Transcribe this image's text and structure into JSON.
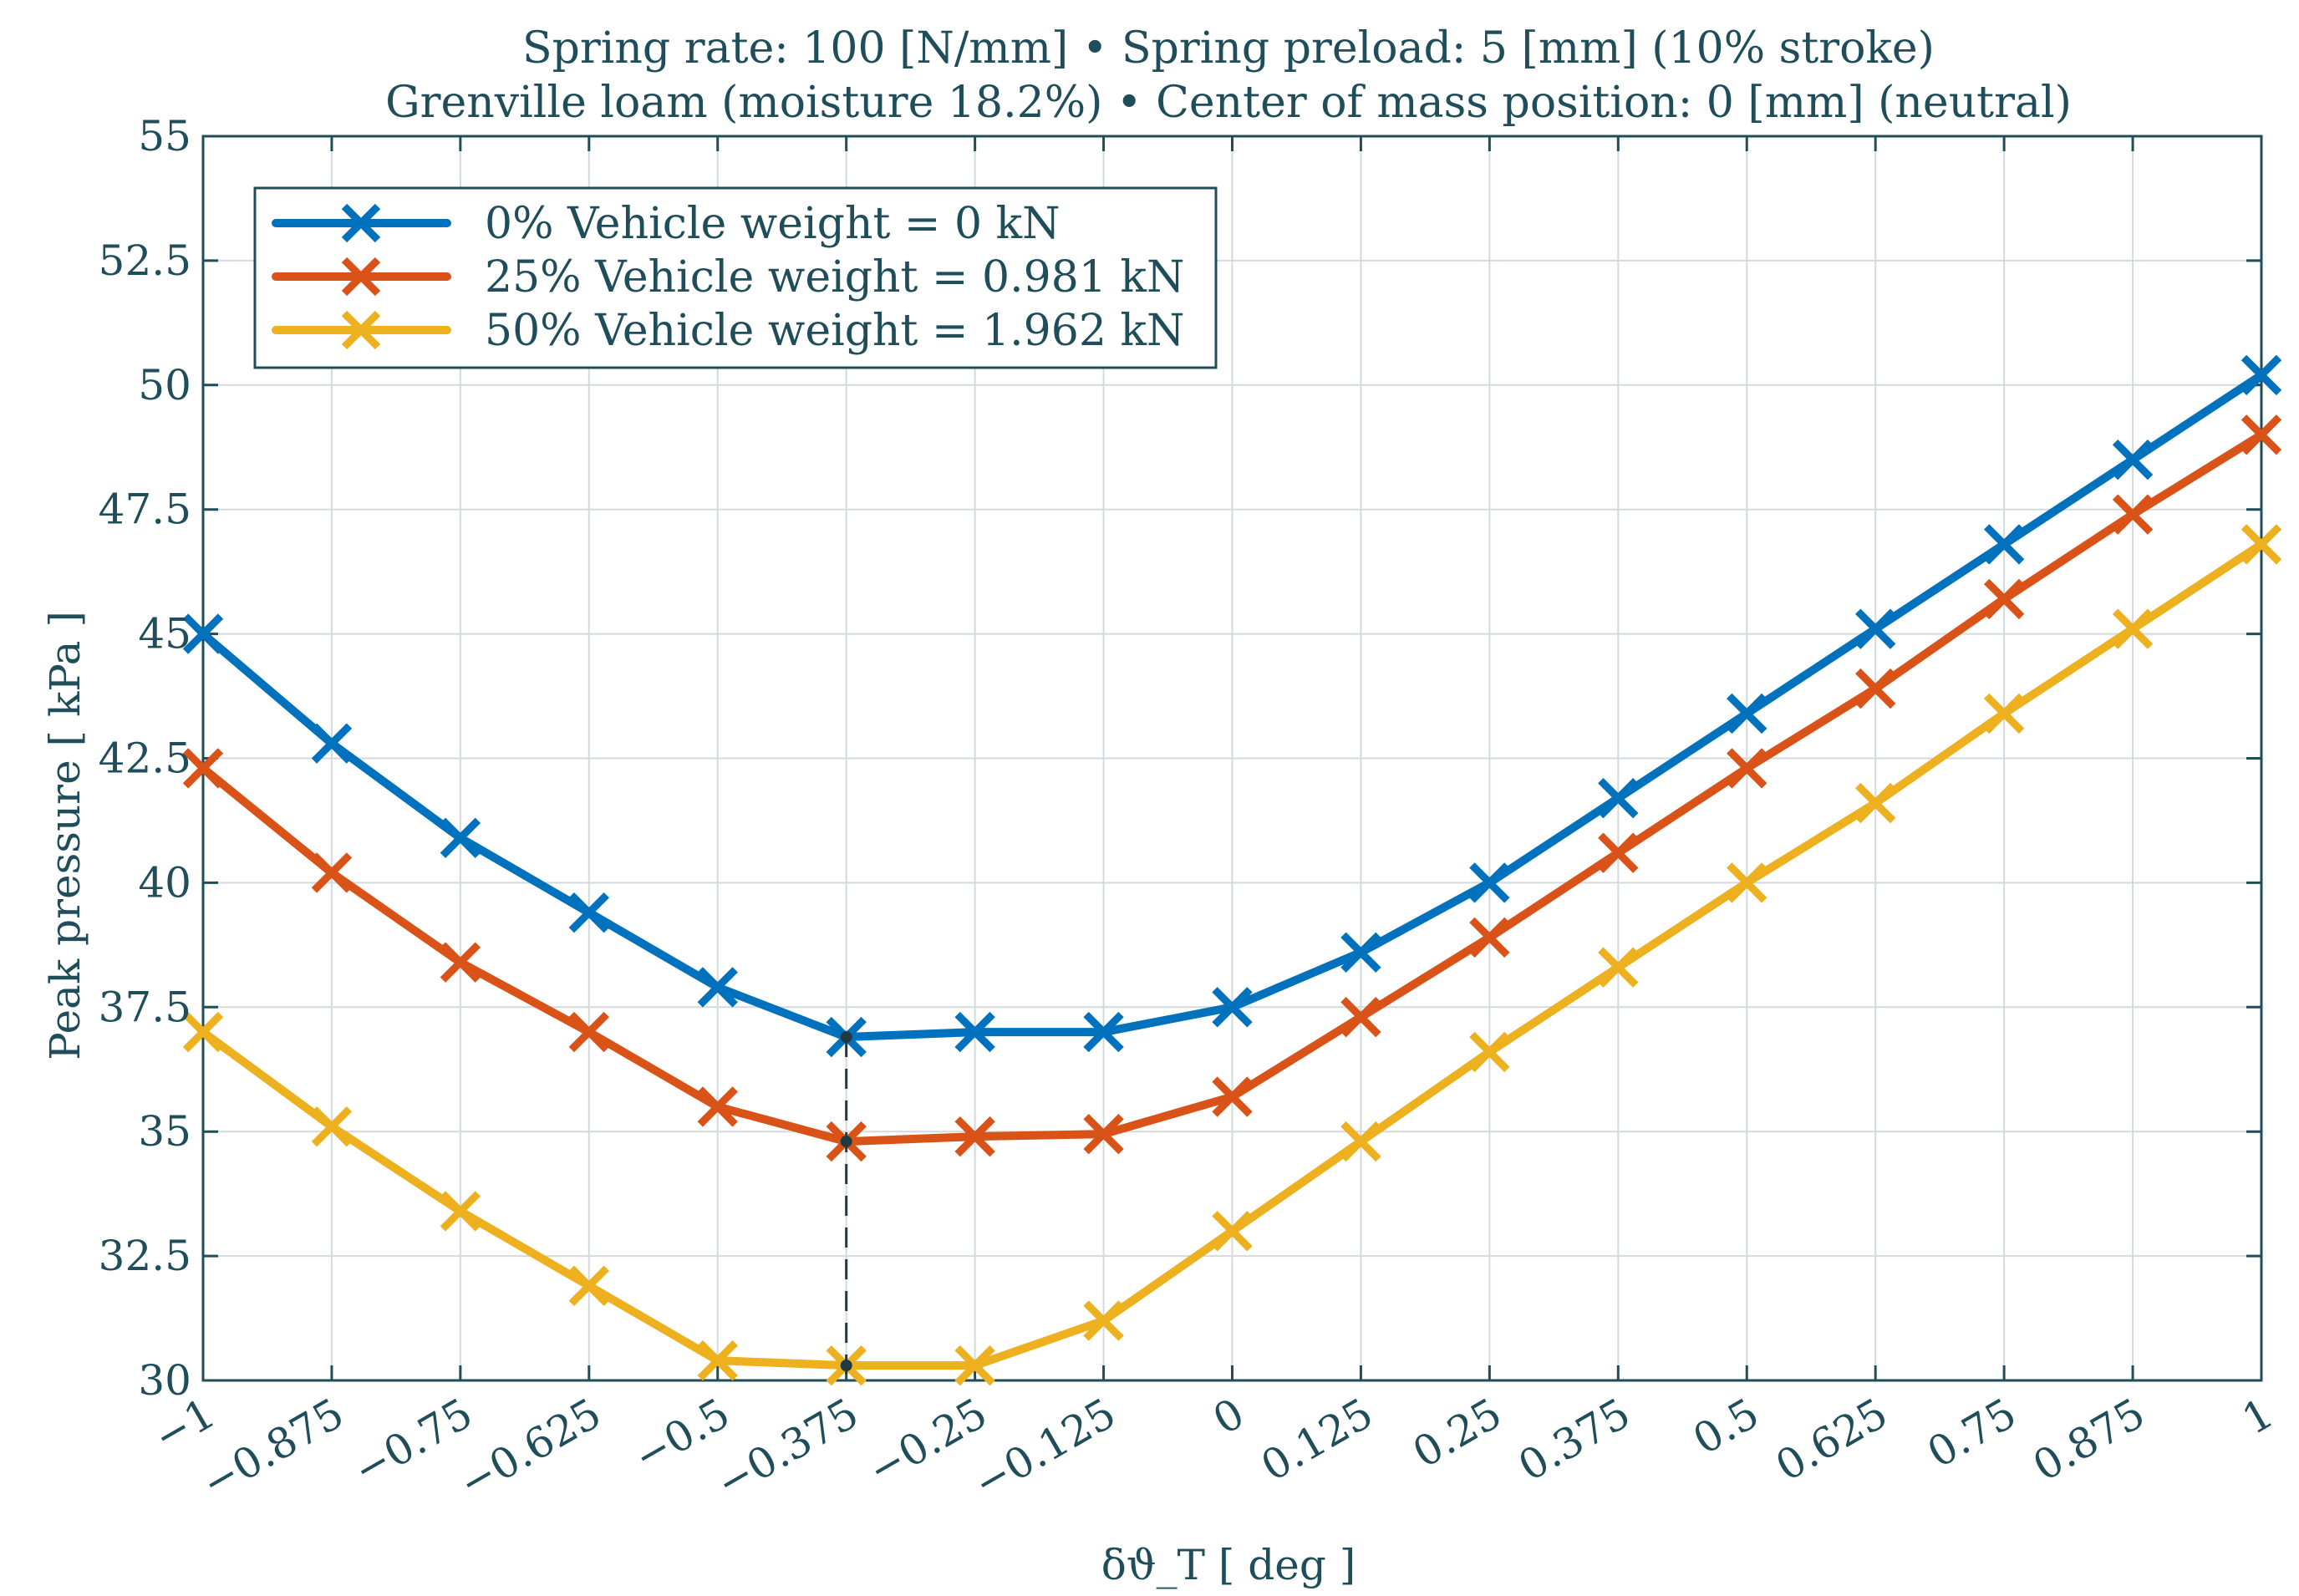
{
  "chart_data": {
    "type": "line",
    "title_lines": [
      "Spring rate: 100 [N/mm] • Spring preload: 5 [mm] (10% stroke)",
      "Grenville loam (moisture 18.2%) • Center of mass position: 0 [mm] (neutral)"
    ],
    "xlabel": "δϑ_T [ deg ]",
    "ylabel": "Peak pressure [ kPa ]",
    "xlim": [
      -1,
      1
    ],
    "ylim": [
      30,
      55
    ],
    "grid": true,
    "legend_position": "top-left",
    "x": [
      -1,
      -0.875,
      -0.75,
      -0.625,
      -0.5,
      -0.375,
      -0.25,
      -0.125,
      0,
      0.125,
      0.25,
      0.375,
      0.5,
      0.625,
      0.75,
      0.875,
      1
    ],
    "x_tick_labels": [
      "−1",
      "−0.875",
      "−0.75",
      "−0.625",
      "−0.5",
      "−0.375",
      "−0.25",
      "−0.125",
      "0",
      "0.125",
      "0.25",
      "0.375",
      "0.5",
      "0.625",
      "0.75",
      "0.875",
      "1"
    ],
    "y_ticks": [
      30,
      32.5,
      35,
      37.5,
      40,
      42.5,
      45,
      47.5,
      50,
      52.5,
      55
    ],
    "y_tick_labels": [
      "30",
      "32.5",
      "35",
      "37.5",
      "40",
      "42.5",
      "45",
      "47.5",
      "50",
      "52.5",
      "55"
    ],
    "series": [
      {
        "name": "0% Vehicle weight = 0 kN",
        "color": "#0072bd",
        "values": [
          45.0,
          42.8,
          40.9,
          39.4,
          37.9,
          36.9,
          37.0,
          37.0,
          37.5,
          38.6,
          40.0,
          41.7,
          43.4,
          45.1,
          46.8,
          48.5,
          50.2
        ]
      },
      {
        "name": "25% Vehicle weight = 0.981 kN",
        "color": "#d95319",
        "values": [
          42.3,
          40.2,
          38.4,
          37.0,
          35.5,
          34.8,
          34.9,
          34.95,
          35.7,
          37.3,
          38.9,
          40.6,
          42.3,
          43.9,
          45.7,
          47.4,
          49.0
        ]
      },
      {
        "name": "50% Vehicle weight = 1.962 kN",
        "color": "#edb120",
        "values": [
          37.0,
          35.1,
          33.4,
          31.9,
          30.4,
          30.3,
          30.3,
          31.2,
          33.0,
          34.8,
          36.6,
          38.3,
          40.0,
          41.6,
          43.4,
          45.1,
          46.8
        ]
      }
    ],
    "annotation": {
      "type": "vertical-dashed-line",
      "x": -0.375,
      "points_y": [
        36.9,
        34.8,
        30.3
      ],
      "color": "#1f3a40"
    }
  }
}
